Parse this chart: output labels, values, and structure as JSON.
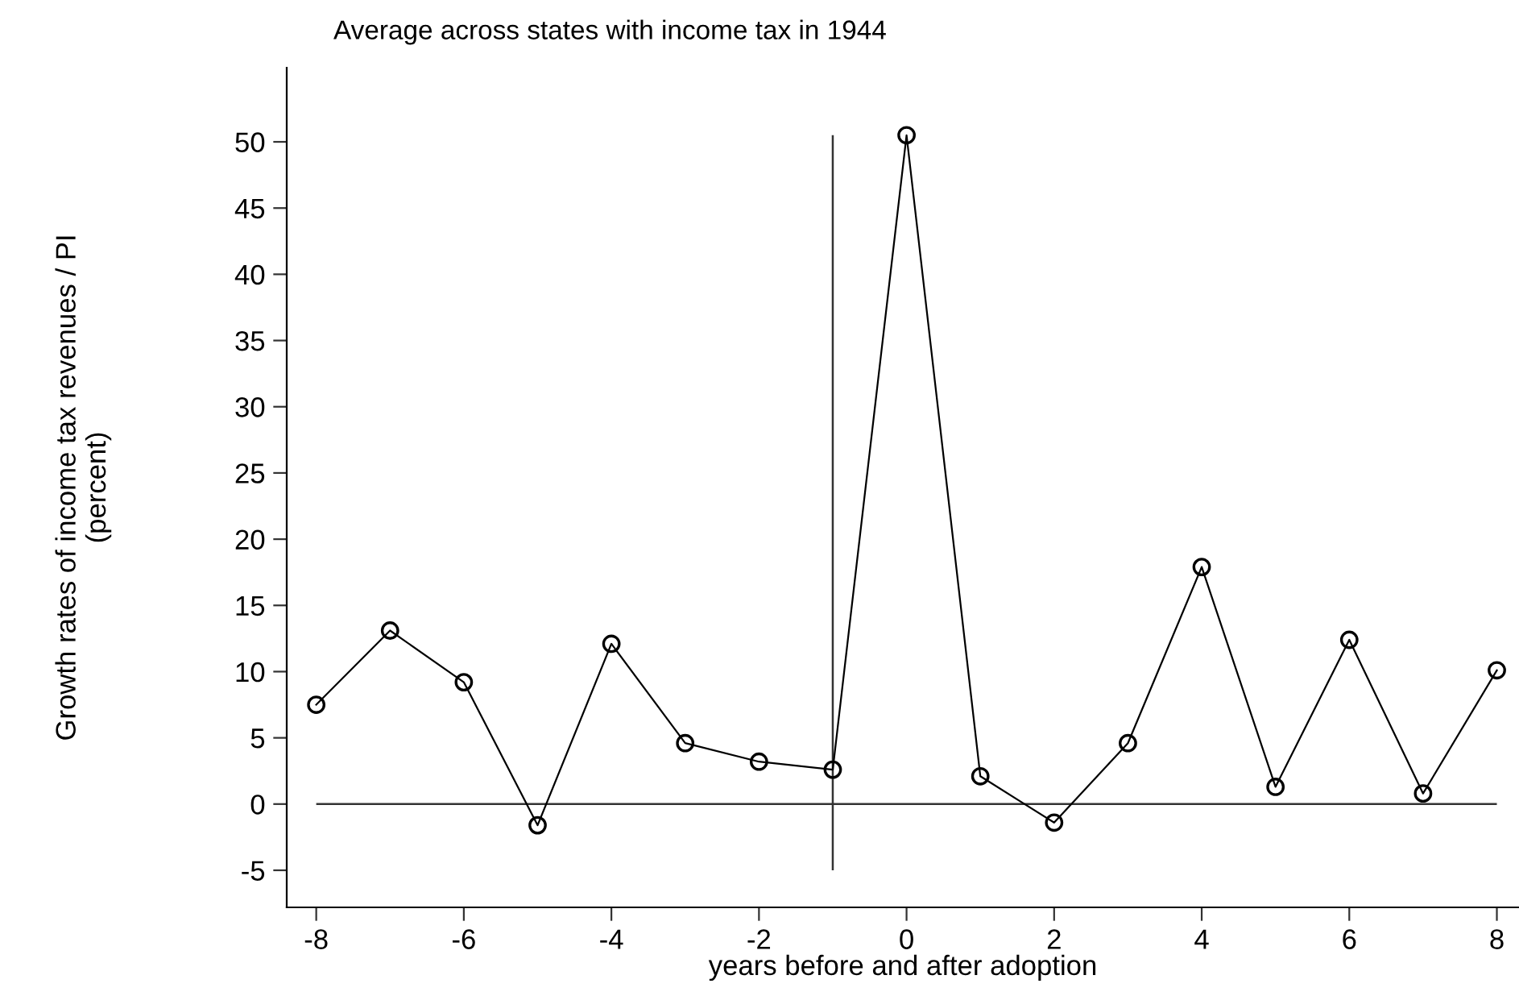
{
  "chart_data": {
    "type": "line",
    "title": "Average across states with income tax in 1944",
    "xlabel": "years before and after adoption",
    "ylabel": "Growth rates of income tax revenues / PI\n(percent)",
    "x": [
      -8,
      -7,
      -6,
      -5,
      -4,
      -3,
      -2,
      -1,
      0,
      1,
      2,
      3,
      4,
      5,
      6,
      7,
      8
    ],
    "series": [
      {
        "color": "#000000",
        "values": [
          7.5,
          13.1,
          9.2,
          -1.6,
          12.1,
          4.6,
          3.2,
          2.6,
          50.5,
          2.1,
          -1.4,
          4.6,
          17.9,
          1.3,
          12.4,
          0.8,
          10.1
        ]
      }
    ],
    "xlim": [
      -8.4,
      8.3
    ],
    "ylim": [
      -7.8,
      55.6
    ],
    "xticks": [
      -8,
      -6,
      -4,
      -2,
      0,
      2,
      4,
      6,
      8
    ],
    "yticks": [
      -5,
      0,
      5,
      10,
      15,
      20,
      25,
      30,
      35,
      40,
      45,
      50
    ],
    "ref_lines": [
      {
        "axis": "y",
        "value": 0,
        "color": "#333333"
      },
      {
        "axis": "x",
        "value": -1,
        "color": "#333333"
      }
    ],
    "marker": "circle",
    "line_style": "solid",
    "grid": false,
    "legend": false
  }
}
